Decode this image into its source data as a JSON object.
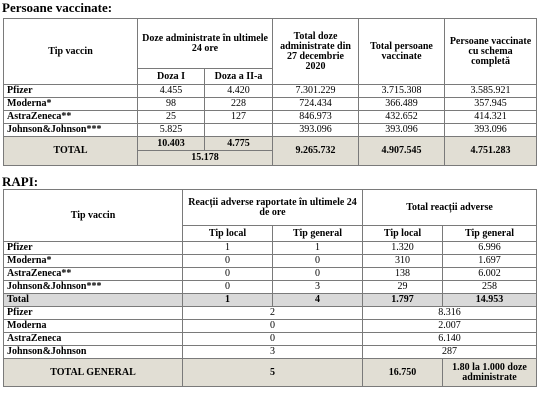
{
  "vaccinated": {
    "title": "Persoane vaccinate:",
    "headers": {
      "tip_vaccin": "Tip vaccin",
      "doze_24h": "Doze administrate în ultimele 24 ore",
      "doza1": "Doza I",
      "doza2": "Doza a II-a",
      "total_doze": "Total doze administrate din 27 decembrie 2020",
      "total_persoane": "Total persoane vaccinate",
      "schema_completa": "Persoane vaccinate cu schema completă"
    },
    "rows": [
      {
        "name": "Pfizer",
        "d1": "4.455",
        "d2": "4.420",
        "total_doze": "7.301.229",
        "total_pers": "3.715.308",
        "complete": "3.585.921"
      },
      {
        "name": "Moderna*",
        "d1": "98",
        "d2": "228",
        "total_doze": "724.434",
        "total_pers": "366.489",
        "complete": "357.945"
      },
      {
        "name": "AstraZeneca**",
        "d1": "25",
        "d2": "127",
        "total_doze": "846.973",
        "total_pers": "432.652",
        "complete": "414.321"
      },
      {
        "name": "Johnson&Johnson***",
        "d1": "5.825",
        "d2": "",
        "total_doze": "393.096",
        "total_pers": "393.096",
        "complete": "393.096"
      }
    ],
    "total": {
      "label": "TOTAL",
      "d1": "10.403",
      "d2": "4.775",
      "d_sum": "15.178",
      "total_doze": "9.265.732",
      "total_pers": "4.907.545",
      "complete": "4.751.283"
    }
  },
  "rapi": {
    "title": "RAPI:",
    "headers": {
      "tip_vaccin": "Tip vaccin",
      "reactii_24h": "Reacții adverse raportate în ultimele 24 de ore",
      "total_reactii": "Total reacții adverse",
      "tip_local": "Tip local",
      "tip_general": "Tip general"
    },
    "rows": [
      {
        "name": "Pfizer",
        "local24": "1",
        "general24": "1",
        "local_total": "1.320",
        "general_total": "6.996"
      },
      {
        "name": "Moderna*",
        "local24": "0",
        "general24": "0",
        "local_total": "310",
        "general_total": "1.697"
      },
      {
        "name": "AstraZeneca**",
        "local24": "0",
        "general24": "0",
        "local_total": "138",
        "general_total": "6.002"
      },
      {
        "name": "Johnson&Johnson***",
        "local24": "0",
        "general24": "3",
        "local_total": "29",
        "general_total": "258"
      }
    ],
    "total": {
      "label": "Total",
      "local24": "1",
      "general24": "4",
      "local_total": "1.797",
      "general_total": "14.953"
    },
    "sum_rows": [
      {
        "name": "Pfizer",
        "s24": "2",
        "stotal": "8.316"
      },
      {
        "name": "Moderna",
        "s24": "0",
        "stotal": "2.007"
      },
      {
        "name": "AstraZeneca",
        "s24": "0",
        "stotal": "6.140"
      },
      {
        "name": "Johnson&Johnson",
        "s24": "3",
        "stotal": "287"
      }
    ],
    "grand_total": {
      "label": "TOTAL GENERAL",
      "s24": "5",
      "stotal": "16.750",
      "rate": "1.80 la 1.000 doze administrate"
    }
  }
}
